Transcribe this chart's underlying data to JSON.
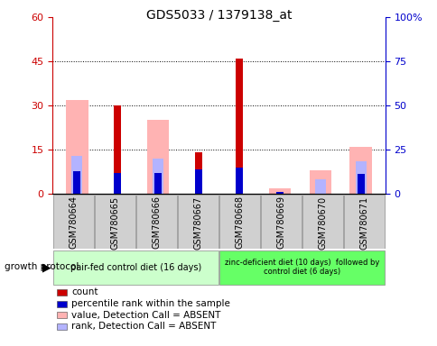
{
  "title": "GDS5033 / 1379138_at",
  "samples": [
    "GSM780664",
    "GSM780665",
    "GSM780666",
    "GSM780667",
    "GSM780668",
    "GSM780669",
    "GSM780670",
    "GSM780671"
  ],
  "count_values": [
    0,
    30,
    0,
    14,
    46,
    0,
    0,
    0
  ],
  "percentile_rank_values": [
    13,
    12,
    12,
    14,
    15,
    1,
    0,
    11
  ],
  "absent_value_values": [
    32,
    0,
    25,
    0,
    0,
    2,
    8,
    16
  ],
  "absent_rank_values": [
    13,
    0,
    12,
    0,
    0,
    0,
    5,
    11
  ],
  "group1_label": "pair-fed control diet (16 days)",
  "group2_label": "zinc-deficient diet (10 days)  followed by\ncontrol diet (6 days)",
  "group_label_prefix": "growth protocol",
  "ylim_left": [
    0,
    60
  ],
  "ylim_right": [
    0,
    100
  ],
  "yticks_left": [
    0,
    15,
    30,
    45,
    60
  ],
  "ytick_labels_left": [
    "0",
    "15",
    "30",
    "45",
    "60"
  ],
  "yticks_right": [
    0,
    25,
    50,
    75,
    100
  ],
  "ytick_labels_right": [
    "0",
    "25",
    "50",
    "75",
    "100%"
  ],
  "color_count": "#cc0000",
  "color_rank": "#0000cc",
  "color_absent_value": "#ffb3b3",
  "color_absent_rank": "#b3b3ff",
  "color_group1_bg": "#ccffcc",
  "color_group2_bg": "#66ff66",
  "color_sample_bg": "#d0d0d0",
  "figsize": [
    4.85,
    3.84
  ],
  "dpi": 100,
  "grid_dotted_values": [
    15,
    30,
    45
  ],
  "legend_items": [
    {
      "color": "#cc0000",
      "label": "count"
    },
    {
      "color": "#0000cc",
      "label": "percentile rank within the sample"
    },
    {
      "color": "#ffb3b3",
      "label": "value, Detection Call = ABSENT"
    },
    {
      "color": "#b3b3ff",
      "label": "rank, Detection Call = ABSENT"
    }
  ]
}
